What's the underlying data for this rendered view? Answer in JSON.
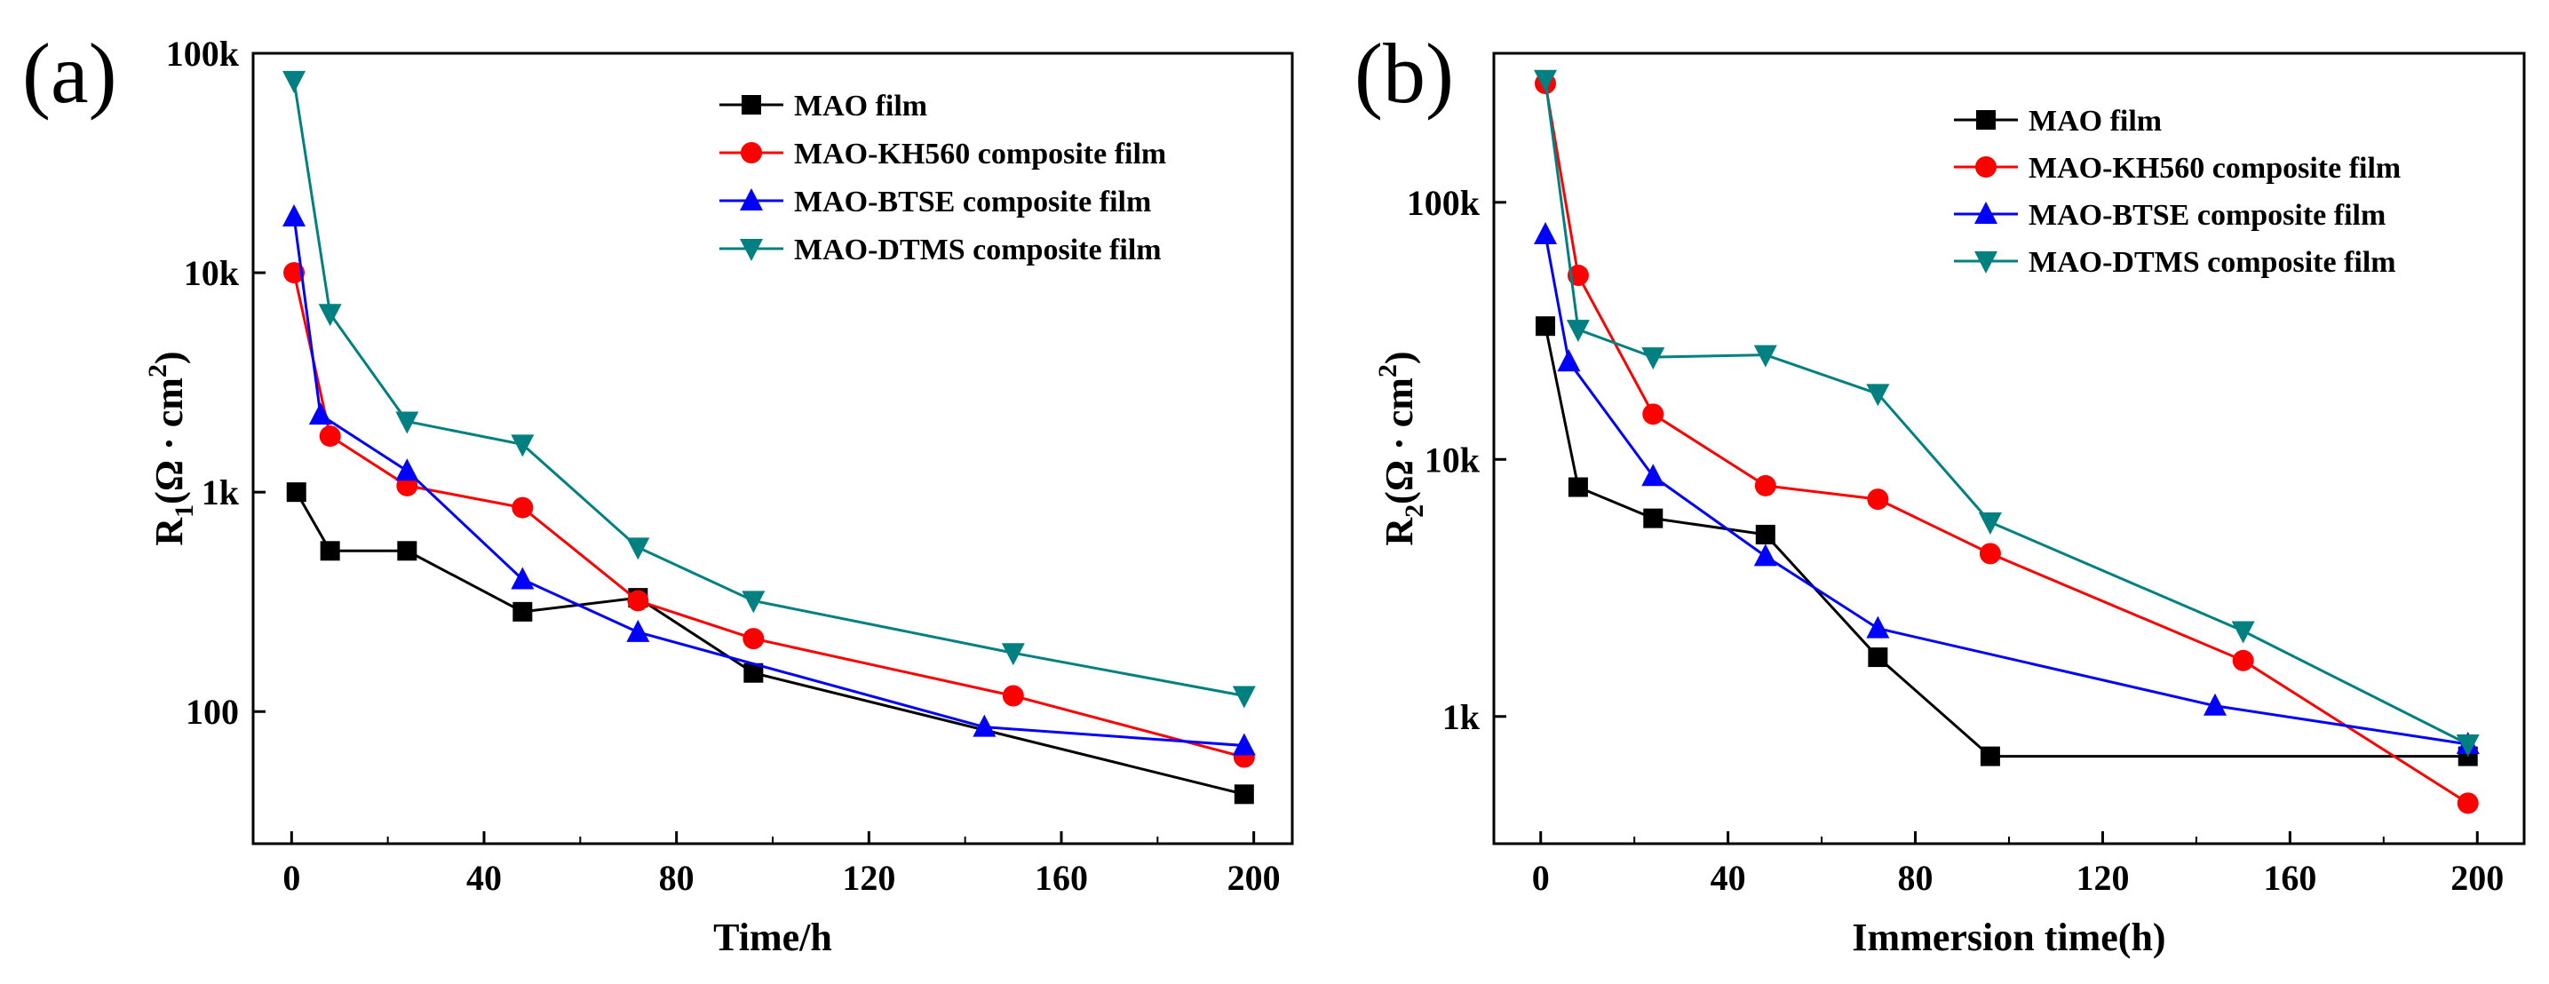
{
  "chart_data": [
    {
      "type": "line",
      "panel_label": "(a)",
      "xlabel": "Time/h",
      "ylabel": "R1(Ω · cm2)",
      "ylabel_parts": {
        "main": "R",
        "sub": "1",
        "unit": "(Ω · cm",
        "sup": "2",
        "close": ")"
      },
      "xlim": [
        -8,
        208
      ],
      "ylim": [
        25,
        100000
      ],
      "yscale": "log",
      "xticks": [
        0,
        40,
        80,
        120,
        160,
        200
      ],
      "xtick_labels": [
        "0",
        "40",
        "80",
        "120",
        "160",
        "200"
      ],
      "yticks": [
        100,
        1000,
        10000,
        100000
      ],
      "ytick_labels": [
        "100",
        "1k",
        "10k",
        "100k"
      ],
      "legend_position": "top-right",
      "series": [
        {
          "name": "MAO film",
          "color": "#000000",
          "marker": "square",
          "x": [
            1,
            8,
            24,
            48,
            72,
            96,
            198
          ],
          "y": [
            1000,
            540,
            540,
            285,
            330,
            150,
            42
          ]
        },
        {
          "name": "MAO-KH560 composite film",
          "color": "#ff0000",
          "marker": "circle",
          "x": [
            0.5,
            8,
            24,
            48,
            72,
            96,
            150,
            198
          ],
          "y": [
            10000,
            1800,
            1070,
            850,
            320,
            215,
            118,
            62
          ]
        },
        {
          "name": "MAO-BTSE composite film",
          "color": "#0000ff",
          "marker": "triangle-up",
          "x": [
            0.5,
            6,
            24,
            48,
            72,
            144,
            198
          ],
          "y": [
            18000,
            2250,
            1250,
            400,
            230,
            85,
            70
          ]
        },
        {
          "name": "MAO-DTMS composite film",
          "color": "#008080",
          "marker": "triangle-down",
          "x": [
            0.5,
            8,
            24,
            48,
            72,
            96,
            150,
            198
          ],
          "y": [
            75000,
            6500,
            2100,
            1650,
            560,
            320,
            185,
            118
          ]
        }
      ]
    },
    {
      "type": "line",
      "panel_label": "(b)",
      "xlabel": "Immersion time(h)",
      "ylabel": "R2(Ω · cm2)",
      "ylabel_parts": {
        "main": "R",
        "sub": "2",
        "unit": "(Ω · cm",
        "sup": "2",
        "close": ")"
      },
      "xlim": [
        -10,
        210
      ],
      "ylim": [
        320,
        380000
      ],
      "yscale": "log",
      "xticks": [
        0,
        40,
        80,
        120,
        160,
        200
      ],
      "xtick_labels": [
        "0",
        "40",
        "80",
        "120",
        "160",
        "200"
      ],
      "yticks": [
        1000,
        10000,
        100000
      ],
      "ytick_labels": [
        "1k",
        "10k",
        "100k"
      ],
      "legend_position": "top-right",
      "series": [
        {
          "name": "MAO film",
          "color": "#000000",
          "marker": "square",
          "x": [
            1,
            8,
            24,
            48,
            72,
            96,
            198
          ],
          "y": [
            33000,
            7800,
            5900,
            5100,
            1700,
            700,
            700
          ]
        },
        {
          "name": "MAO-KH560 composite film",
          "color": "#ff0000",
          "marker": "circle",
          "x": [
            1,
            8,
            24,
            48,
            72,
            96,
            150,
            198
          ],
          "y": [
            290000,
            52000,
            15000,
            7900,
            7000,
            4300,
            1650,
            460
          ]
        },
        {
          "name": "MAO-BTSE composite film",
          "color": "#0000ff",
          "marker": "triangle-up",
          "x": [
            1,
            6,
            24,
            48,
            72,
            144,
            198
          ],
          "y": [
            75000,
            24000,
            8600,
            4200,
            2200,
            1100,
            780
          ]
        },
        {
          "name": "MAO-DTMS composite film",
          "color": "#008080",
          "marker": "triangle-down",
          "x": [
            1,
            8,
            24,
            48,
            72,
            96,
            150,
            198
          ],
          "y": [
            300000,
            32000,
            25000,
            25500,
            18000,
            5700,
            2150,
            780
          ]
        }
      ]
    }
  ]
}
